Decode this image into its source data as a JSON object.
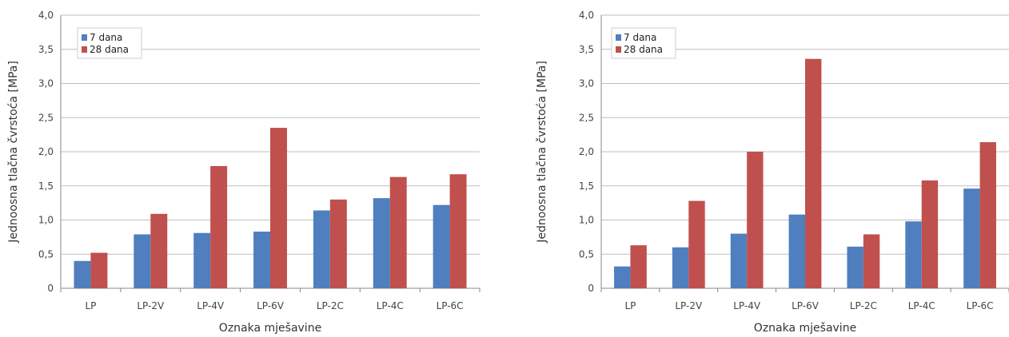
{
  "colors": {
    "series_7": "#4F7FBF",
    "series_28": "#C0504D",
    "grid": "#BFBFBF",
    "axis": "#888888"
  },
  "chart_data": [
    {
      "type": "bar",
      "categories": [
        "LP",
        "LP-2V",
        "LP-4V",
        "LP-6V",
        "LP-2C",
        "LP-4C",
        "LP-6C"
      ],
      "series": [
        {
          "name": "7 dana",
          "values": [
            0.4,
            0.79,
            0.81,
            0.83,
            1.14,
            1.32,
            1.22
          ]
        },
        {
          "name": "28 dana",
          "values": [
            0.52,
            1.09,
            1.79,
            2.35,
            1.3,
            1.63,
            1.67
          ]
        }
      ],
      "xlabel": "Oznaka mješavine",
      "ylabel": "Jednoosna tlačna čvrstoća [MPa]",
      "ylim": [
        0,
        4.0
      ],
      "yticks": [
        "0",
        "0,5",
        "1,0",
        "1,5",
        "2,0",
        "2,5",
        "3,0",
        "3,5",
        "4,0"
      ],
      "grid": true,
      "legend": "top-left"
    },
    {
      "type": "bar",
      "categories": [
        "LP",
        "LP-2V",
        "LP-4V",
        "LP-6V",
        "LP-2C",
        "LP-4C",
        "LP-6C"
      ],
      "series": [
        {
          "name": "7 dana",
          "values": [
            0.32,
            0.6,
            0.8,
            1.08,
            0.61,
            0.98,
            1.46
          ]
        },
        {
          "name": "28 dana",
          "values": [
            0.63,
            1.28,
            2.0,
            3.36,
            0.79,
            1.58,
            2.14
          ]
        }
      ],
      "xlabel": "Oznaka mješavine",
      "ylabel": "Jednoosna tlačna čvrstoća [MPa]",
      "ylim": [
        0,
        4.0
      ],
      "yticks": [
        "0",
        "0,5",
        "1,0",
        "1,5",
        "2,0",
        "2,5",
        "3,0",
        "3,5",
        "4,0"
      ],
      "grid": true,
      "legend": "top-left"
    }
  ]
}
